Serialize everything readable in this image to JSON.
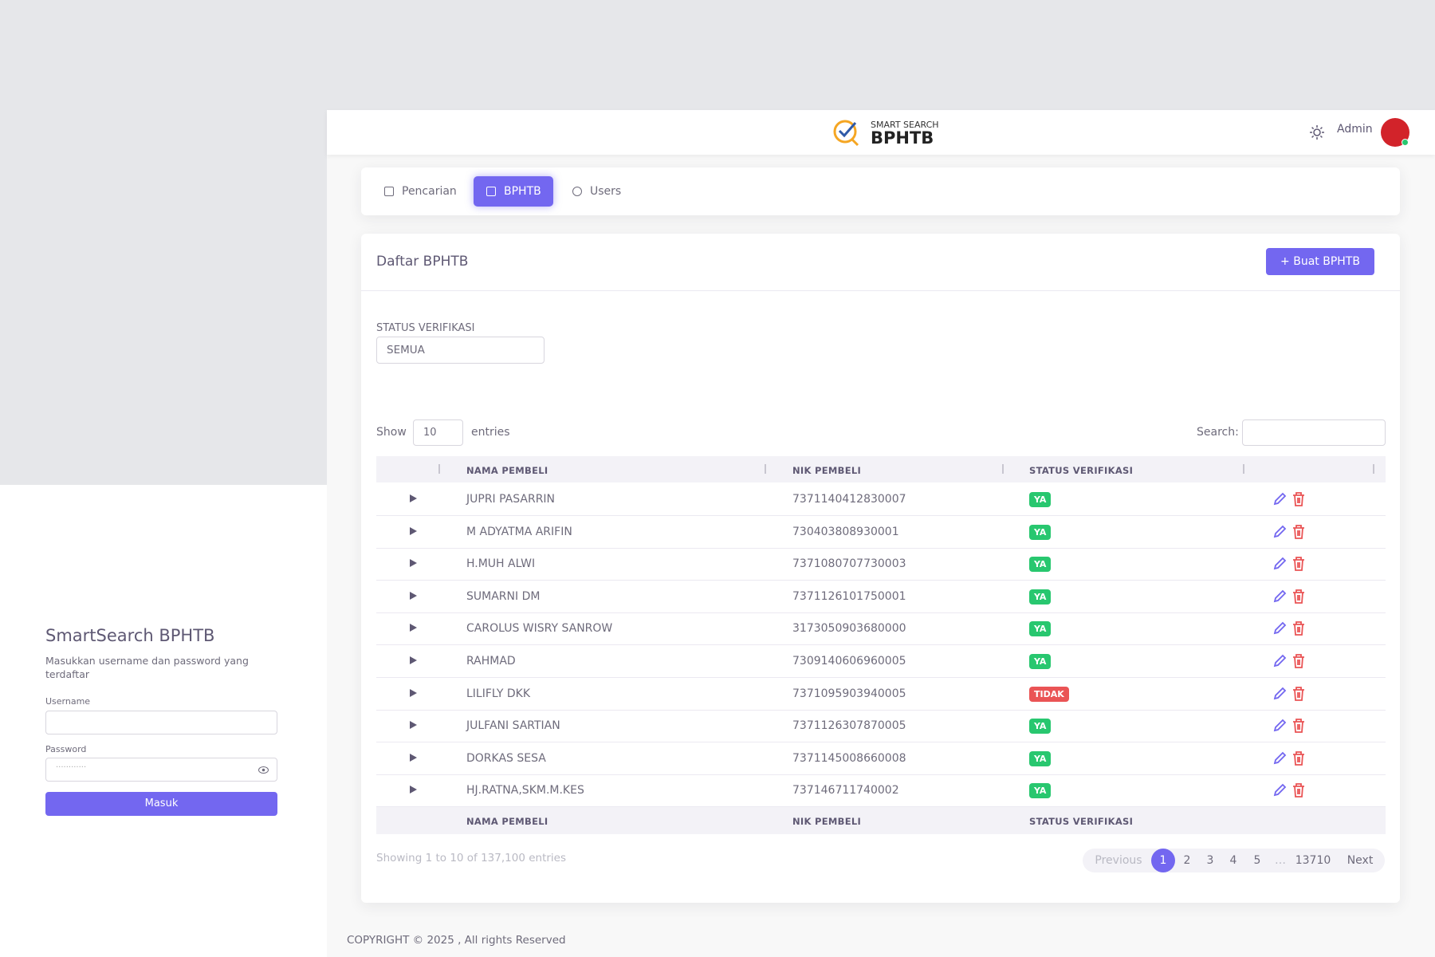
{
  "login": {
    "title": "SmartSearch BPHTB",
    "subtitle": "Masukkan username dan password yang terdaftar",
    "username_label": "Username",
    "password_label": "Password",
    "password_placeholder": "············",
    "button": "Masuk"
  },
  "header": {
    "logo_small": "SMART SEARCH",
    "logo_big": "BPHTB",
    "user": "Admin"
  },
  "nav": [
    "Pencarian",
    "BPHTB",
    "Users"
  ],
  "page": {
    "title": "Daftar BPHTB",
    "create_button": "+ Buat BPHTB",
    "filter_label": "STATUS VERIFIKASI",
    "filter_value": "SEMUA",
    "show": "Show",
    "entries_value": "10",
    "entries": "entries",
    "search": "Search:"
  },
  "table": {
    "columns": [
      "NAMA PEMBELI",
      "NIK PEMBELI",
      "STATUS VERIFIKASI"
    ],
    "rows": [
      [
        "JUPRI PASARRIN",
        "7371140412830007",
        "YA"
      ],
      [
        "M ADYATMA ARIFIN",
        "730403808930001",
        "YA"
      ],
      [
        "H.MUH ALWI",
        "7371080707730003",
        "YA"
      ],
      [
        "SUMARNI DM",
        "7371126101750001",
        "YA"
      ],
      [
        "CAROLUS WISRY SANROW",
        "3173050903680000",
        "YA"
      ],
      [
        "RAHMAD",
        "7309140606960005",
        "YA"
      ],
      [
        "LILIFLY DKK",
        "7371095903940005",
        "TIDAK"
      ],
      [
        "JULFANI SARTIAN",
        "7371126307870005",
        "YA"
      ],
      [
        "DORKAS SESA",
        "7371145008660008",
        "YA"
      ],
      [
        "HJ.RATNA,SKM.M.KES",
        "737146711740002",
        "YA"
      ]
    ],
    "info": "Showing 1 to 10 of 137,100 entries"
  },
  "pagination": {
    "previous": "Previous",
    "pages": [
      "1",
      "2",
      "3",
      "4",
      "5",
      "…",
      "13710"
    ],
    "next": "Next"
  },
  "footer": "COPYRIGHT © 2025 , All rights Reserved"
}
